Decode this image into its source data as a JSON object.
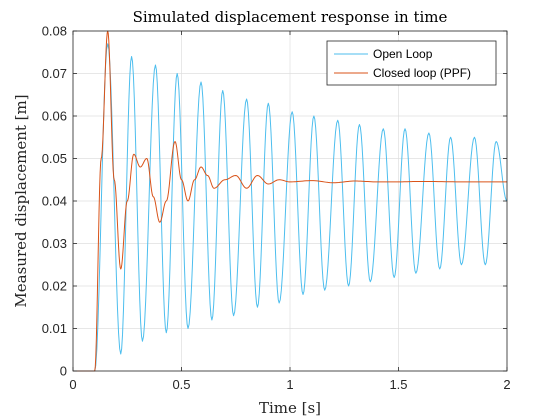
{
  "chart_data": {
    "type": "line",
    "title": "Simulated displacement response in time",
    "xlabel": "Time [s]",
    "ylabel": "Measured displacement [m]",
    "xlim": [
      0,
      2
    ],
    "ylim": [
      0,
      0.08
    ],
    "x_ticks": [
      0,
      0.5,
      1,
      1.5,
      2
    ],
    "x_tick_labels": [
      "0",
      "0.5",
      "1",
      "1.5",
      "2"
    ],
    "y_ticks": [
      0,
      0.01,
      0.02,
      0.03,
      0.04,
      0.05,
      0.06,
      0.07,
      0.08
    ],
    "y_tick_labels": [
      "0",
      "0.01",
      "0.02",
      "0.03",
      "0.04",
      "0.05",
      "0.06",
      "0.07",
      "0.08"
    ],
    "grid": true,
    "legend_position": "top-right",
    "series": [
      {
        "name": "Open Loop",
        "color": "#4DBEEE",
        "x": [
          0,
          0.1,
          0.16,
          0.22,
          0.27,
          0.32,
          0.38,
          0.43,
          0.48,
          0.53,
          0.59,
          0.64,
          0.69,
          0.74,
          0.8,
          0.85,
          0.9,
          0.95,
          1.01,
          1.06,
          1.11,
          1.16,
          1.22,
          1.27,
          1.32,
          1.37,
          1.43,
          1.48,
          1.53,
          1.58,
          1.64,
          1.69,
          1.74,
          1.79,
          1.85,
          1.9,
          1.95,
          2.0
        ],
        "y": [
          0,
          0,
          0.077,
          0.004,
          0.074,
          0.007,
          0.072,
          0.009,
          0.07,
          0.01,
          0.068,
          0.012,
          0.066,
          0.013,
          0.064,
          0.015,
          0.063,
          0.016,
          0.061,
          0.018,
          0.06,
          0.019,
          0.059,
          0.02,
          0.058,
          0.021,
          0.057,
          0.022,
          0.057,
          0.023,
          0.056,
          0.024,
          0.055,
          0.025,
          0.055,
          0.025,
          0.054,
          0.04
        ]
      },
      {
        "name": "Closed loop (PPF)",
        "color": "#D95319",
        "x": [
          0,
          0.1,
          0.13,
          0.16,
          0.19,
          0.22,
          0.25,
          0.28,
          0.31,
          0.34,
          0.37,
          0.4,
          0.43,
          0.47,
          0.5,
          0.53,
          0.56,
          0.59,
          0.62,
          0.65,
          0.7,
          0.75,
          0.8,
          0.85,
          0.9,
          0.95,
          1.0,
          1.1,
          1.2,
          1.3,
          1.4,
          1.5,
          1.6,
          1.8,
          2.0
        ],
        "y": [
          0,
          0,
          0.05,
          0.08,
          0.045,
          0.024,
          0.04,
          0.051,
          0.048,
          0.05,
          0.041,
          0.035,
          0.04,
          0.054,
          0.045,
          0.04,
          0.045,
          0.048,
          0.046,
          0.043,
          0.045,
          0.046,
          0.043,
          0.046,
          0.044,
          0.045,
          0.0445,
          0.0448,
          0.0443,
          0.0447,
          0.0445,
          0.0445,
          0.0446,
          0.0445,
          0.0445
        ]
      }
    ]
  }
}
